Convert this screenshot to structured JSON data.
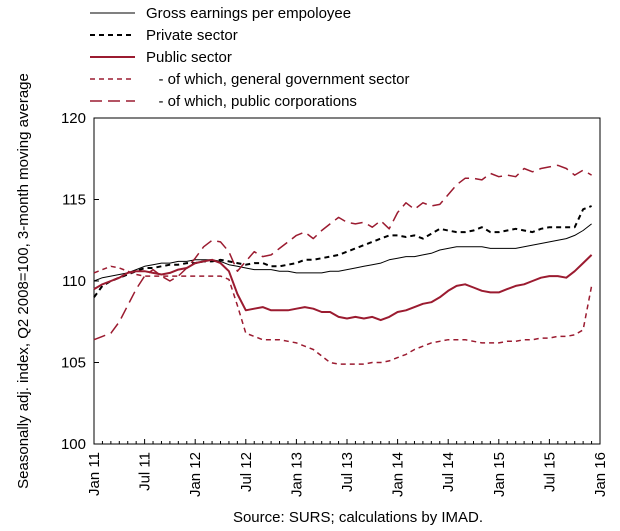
{
  "chart_data": {
    "type": "line",
    "ylabel": "Seasonally adj. index, Q2  2008=100, 3-month moving average",
    "source": "Source: SURS; calculations by IMAD.",
    "ylim": [
      100,
      120
    ],
    "yticks": [
      100,
      105,
      110,
      115,
      120
    ],
    "xlim": [
      "2011-01",
      "2016-01"
    ],
    "xticks": [
      "Jan 11",
      "Jul 11",
      "Jan 12",
      "Jul 12",
      "Jan 13",
      "Jul 13",
      "Jan 14",
      "Jul 14",
      "Jan 15",
      "Jul 15",
      "Jan 16"
    ],
    "grid": false,
    "legend_position": "top",
    "x": [
      "2011-01",
      "2011-02",
      "2011-03",
      "2011-04",
      "2011-05",
      "2011-06",
      "2011-07",
      "2011-08",
      "2011-09",
      "2011-10",
      "2011-11",
      "2011-12",
      "2012-01",
      "2012-02",
      "2012-03",
      "2012-04",
      "2012-05",
      "2012-06",
      "2012-07",
      "2012-08",
      "2012-09",
      "2012-10",
      "2012-11",
      "2012-12",
      "2013-01",
      "2013-02",
      "2013-03",
      "2013-04",
      "2013-05",
      "2013-06",
      "2013-07",
      "2013-08",
      "2013-09",
      "2013-10",
      "2013-11",
      "2013-12",
      "2014-01",
      "2014-02",
      "2014-03",
      "2014-04",
      "2014-05",
      "2014-06",
      "2014-07",
      "2014-08",
      "2014-09",
      "2014-10",
      "2014-11",
      "2014-12",
      "2015-01",
      "2015-02",
      "2015-03",
      "2015-04",
      "2015-05",
      "2015-06",
      "2015-07",
      "2015-08",
      "2015-09",
      "2015-10",
      "2015-11",
      "2015-12"
    ],
    "series": [
      {
        "name": "Gross earnings per empoloyee",
        "color": "#000000",
        "dash": "solid",
        "width": 1,
        "values": [
          110.0,
          110.2,
          110.3,
          110.4,
          110.5,
          110.7,
          110.9,
          111.0,
          111.1,
          111.1,
          111.2,
          111.2,
          111.3,
          111.3,
          111.3,
          111.2,
          111.0,
          110.9,
          110.8,
          110.7,
          110.7,
          110.7,
          110.6,
          110.6,
          110.5,
          110.5,
          110.5,
          110.5,
          110.6,
          110.6,
          110.7,
          110.8,
          110.9,
          111.0,
          111.1,
          111.3,
          111.4,
          111.5,
          111.5,
          111.6,
          111.7,
          111.9,
          112.0,
          112.1,
          112.1,
          112.1,
          112.1,
          112.0,
          112.0,
          112.0,
          112.0,
          112.1,
          112.2,
          112.3,
          112.4,
          112.5,
          112.6,
          112.8,
          113.1,
          113.5
        ]
      },
      {
        "name": "Private sector",
        "color": "#000000",
        "dash": "short-dash",
        "width": 2,
        "values": [
          109.0,
          109.7,
          110.0,
          110.2,
          110.4,
          110.6,
          110.8,
          110.8,
          110.9,
          111.0,
          111.0,
          111.1,
          111.1,
          111.2,
          111.2,
          111.3,
          111.2,
          111.1,
          111.0,
          111.1,
          111.1,
          110.9,
          110.9,
          111.0,
          111.1,
          111.3,
          111.3,
          111.4,
          111.5,
          111.6,
          111.8,
          112.0,
          112.2,
          112.4,
          112.6,
          112.8,
          112.8,
          112.7,
          112.8,
          112.6,
          112.9,
          113.2,
          113.1,
          113.0,
          113.0,
          113.1,
          113.3,
          113.0,
          113.0,
          113.1,
          113.2,
          113.1,
          113.0,
          113.2,
          113.3,
          113.3,
          113.3,
          113.3,
          114.4,
          114.6
        ]
      },
      {
        "name": "Public sector",
        "color": "#9b1b30",
        "dash": "solid",
        "width": 2,
        "values": [
          109.5,
          109.8,
          110.0,
          110.2,
          110.5,
          110.6,
          110.6,
          110.5,
          110.4,
          110.5,
          110.7,
          110.8,
          111.1,
          111.2,
          111.3,
          111.1,
          110.6,
          109.2,
          108.2,
          108.3,
          108.4,
          108.2,
          108.2,
          108.2,
          108.3,
          108.4,
          108.3,
          108.1,
          108.1,
          107.8,
          107.7,
          107.8,
          107.7,
          107.8,
          107.6,
          107.8,
          108.1,
          108.2,
          108.4,
          108.6,
          108.7,
          109.0,
          109.4,
          109.7,
          109.8,
          109.6,
          109.4,
          109.3,
          109.3,
          109.5,
          109.7,
          109.8,
          110.0,
          110.2,
          110.3,
          110.3,
          110.2,
          110.6,
          111.1,
          111.6
        ]
      },
      {
        "name": "   - of which, general government sector",
        "color": "#9b1b30",
        "dash": "short-dash",
        "width": 1.5,
        "values": [
          110.5,
          110.7,
          110.9,
          110.8,
          110.6,
          110.4,
          110.3,
          110.3,
          110.3,
          110.3,
          110.3,
          110.3,
          110.3,
          110.3,
          110.3,
          110.3,
          110.1,
          108.5,
          106.8,
          106.6,
          106.4,
          106.4,
          106.4,
          106.3,
          106.2,
          106.0,
          105.8,
          105.4,
          105.0,
          104.9,
          104.9,
          104.9,
          104.9,
          105.0,
          105.0,
          105.1,
          105.3,
          105.5,
          105.8,
          106.0,
          106.2,
          106.3,
          106.4,
          106.4,
          106.4,
          106.3,
          106.2,
          106.2,
          106.2,
          106.3,
          106.3,
          106.4,
          106.4,
          106.5,
          106.5,
          106.6,
          106.6,
          106.7,
          107.0,
          109.7
        ]
      },
      {
        "name": "   - of which, public corporations",
        "color": "#9b1b30",
        "dash": "long-dash",
        "width": 1.5,
        "values": [
          106.4,
          106.6,
          106.8,
          107.5,
          108.5,
          109.5,
          110.3,
          110.7,
          110.3,
          110.0,
          110.3,
          110.8,
          111.4,
          112.1,
          112.5,
          112.4,
          111.8,
          110.6,
          111.2,
          111.8,
          111.5,
          111.6,
          112.0,
          112.4,
          112.8,
          113.0,
          112.6,
          113.1,
          113.5,
          113.9,
          113.6,
          113.5,
          113.6,
          113.3,
          113.7,
          113.2,
          114.2,
          114.8,
          114.4,
          114.8,
          114.6,
          114.7,
          115.3,
          115.9,
          116.3,
          116.3,
          116.2,
          116.6,
          116.4,
          116.5,
          116.4,
          116.9,
          116.7,
          116.9,
          117.0,
          117.1,
          116.9,
          116.5,
          116.8,
          116.5
        ]
      }
    ]
  }
}
